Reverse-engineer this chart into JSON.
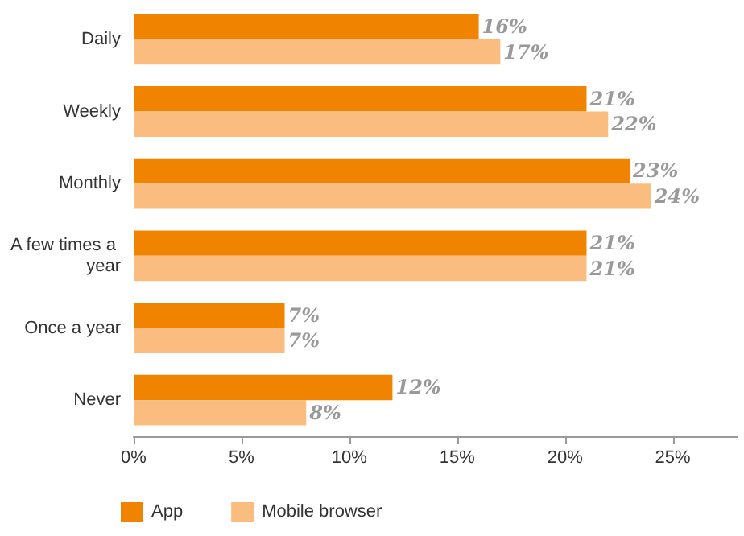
{
  "chart_data": {
    "type": "bar",
    "orientation": "horizontal",
    "categories": [
      "Daily",
      "Weekly",
      "Monthly",
      "A few times a year",
      "Once a year",
      "Never"
    ],
    "series": [
      {
        "name": "App",
        "color": "#f08300",
        "values": [
          16,
          21,
          23,
          21,
          7,
          12
        ],
        "value_labels": [
          "16%",
          "21%",
          "23%",
          "21%",
          "7%",
          "12%"
        ]
      },
      {
        "name": "Mobile browser",
        "color": "#fbbd7f",
        "values": [
          17,
          22,
          24,
          21,
          7,
          8
        ],
        "value_labels": [
          "17%",
          "22%",
          "24%",
          "21%",
          "7%",
          "8%"
        ]
      }
    ],
    "xlim": [
      0,
      28
    ],
    "xticks": [
      {
        "value": 0,
        "label": "0%"
      },
      {
        "value": 5,
        "label": "5%"
      },
      {
        "value": 10,
        "label": "10%"
      },
      {
        "value": 15,
        "label": "15%"
      },
      {
        "value": 20,
        "label": "20%"
      },
      {
        "value": 25,
        "label": "25%"
      }
    ],
    "grid": false,
    "legend": "bottom left"
  }
}
